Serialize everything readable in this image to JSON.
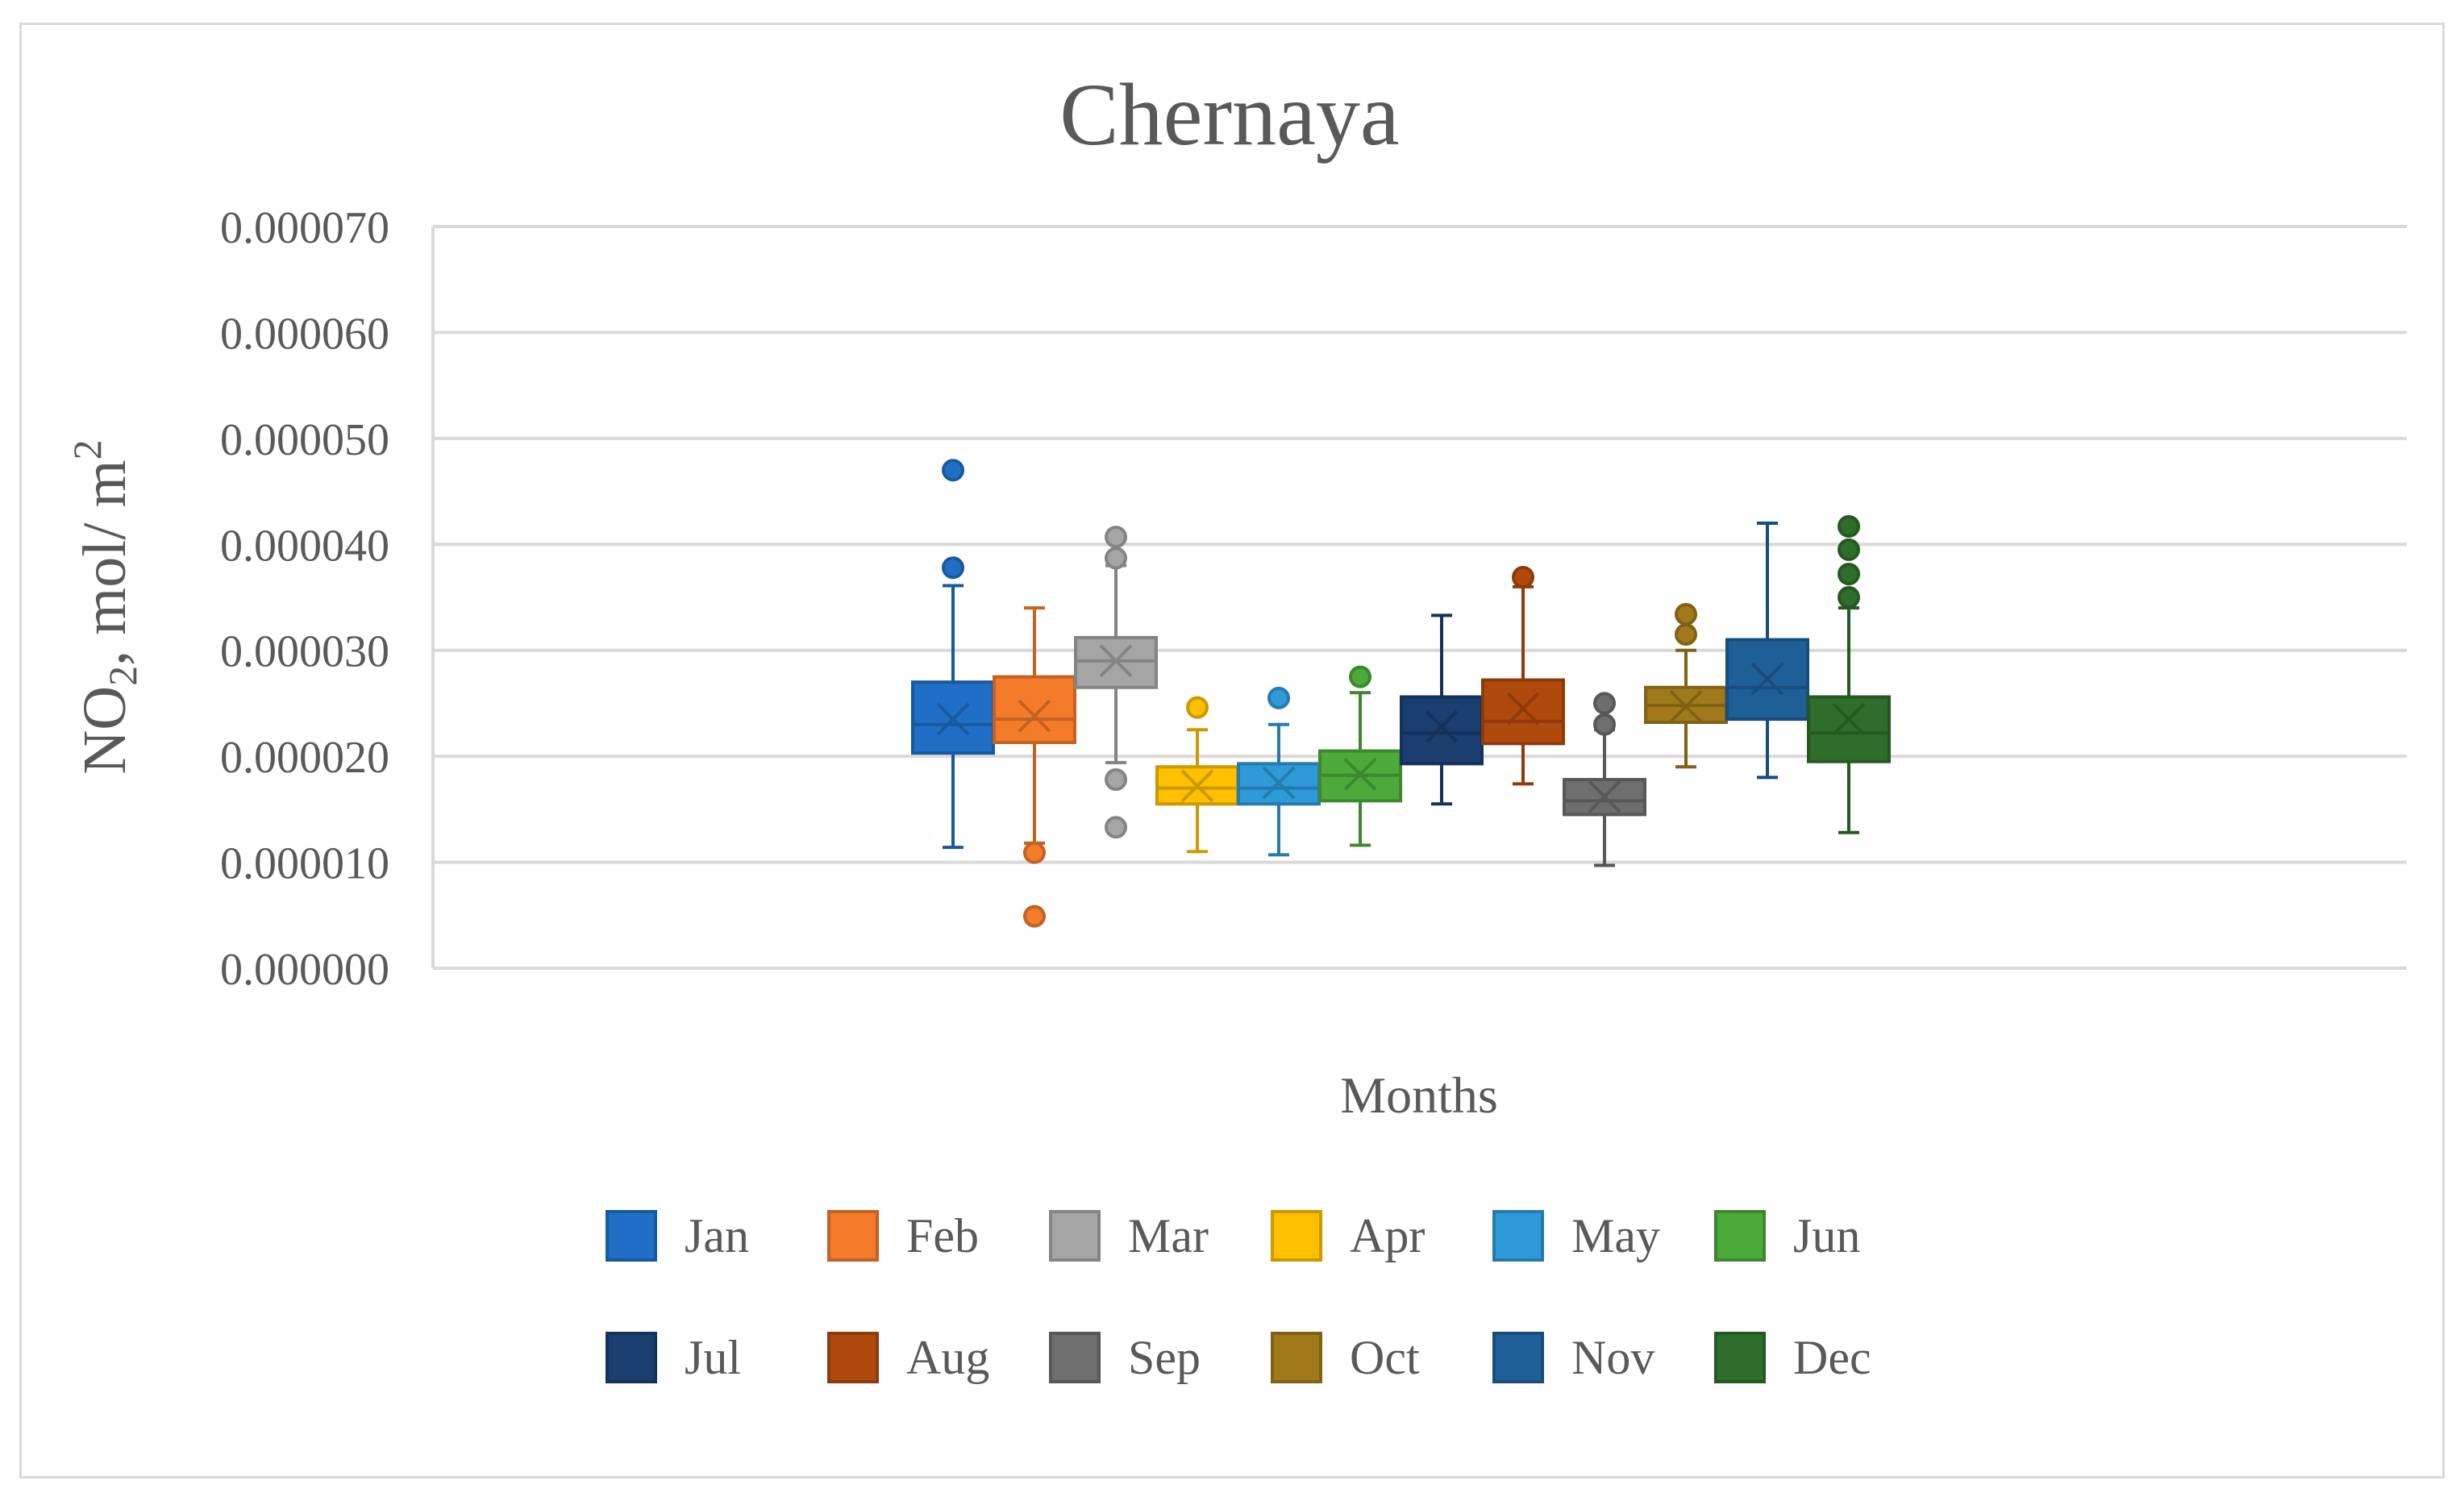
{
  "chart_data": {
    "type": "boxplot",
    "title": "Chernaya",
    "xlabel": "Months",
    "ylabel": {
      "prefix": "NO",
      "sub": "2",
      "mid": ", mol/ m",
      "sup": "2"
    },
    "ylim": [
      0,
      7e-05
    ],
    "yticks": [
      0,
      1e-05,
      2e-05,
      3e-05,
      4e-05,
      5e-05,
      6e-05,
      7e-05
    ],
    "ytick_labels": [
      "0.000000",
      "0.000010",
      "0.000020",
      "0.000030",
      "0.000040",
      "0.000050",
      "0.000060",
      "0.000070"
    ],
    "grid": true,
    "legend_position": "bottom",
    "series": [
      {
        "name": "Jan",
        "color": "#1F6FC6",
        "min": 1.14e-05,
        "q1": 2.03e-05,
        "median": 2.3e-05,
        "q3": 2.7e-05,
        "max": 3.61e-05,
        "mean": 2.35e-05,
        "outliers": [
          3.78e-05,
          4.7e-05
        ]
      },
      {
        "name": "Feb",
        "color": "#F47B2A",
        "min": 1.18e-05,
        "q1": 2.13e-05,
        "median": 2.35e-05,
        "q3": 2.75e-05,
        "max": 3.4e-05,
        "mean": 2.38e-05,
        "outliers": [
          1.09e-05,
          4.9e-06
        ]
      },
      {
        "name": "Mar",
        "color": "#A5A5A5",
        "min": 1.94e-05,
        "q1": 2.65e-05,
        "median": 2.9e-05,
        "q3": 3.12e-05,
        "max": 3.8e-05,
        "mean": 2.9e-05,
        "outliers": [
          4.07e-05,
          3.87e-05,
          1.78e-05,
          1.33e-05
        ]
      },
      {
        "name": "Apr",
        "color": "#FFC000",
        "min": 1.1e-05,
        "q1": 1.55e-05,
        "median": 1.7e-05,
        "q3": 1.9e-05,
        "max": 2.25e-05,
        "mean": 1.72e-05,
        "outliers": [
          2.46e-05
        ]
      },
      {
        "name": "May",
        "color": "#2E9AD8",
        "min": 1.07e-05,
        "q1": 1.55e-05,
        "median": 1.7e-05,
        "q3": 1.93e-05,
        "max": 2.3e-05,
        "mean": 1.75e-05,
        "outliers": [
          2.55e-05
        ]
      },
      {
        "name": "Jun",
        "color": "#4CAA3A",
        "min": 1.16e-05,
        "q1": 1.58e-05,
        "median": 1.82e-05,
        "q3": 2.05e-05,
        "max": 2.6e-05,
        "mean": 1.83e-05,
        "outliers": [
          2.75e-05
        ]
      },
      {
        "name": "Jul",
        "color": "#1A3E70",
        "min": 1.55e-05,
        "q1": 1.93e-05,
        "median": 2.22e-05,
        "q3": 2.56e-05,
        "max": 3.33e-05,
        "mean": 2.28e-05,
        "outliers": []
      },
      {
        "name": "Aug",
        "color": "#B04A0C",
        "min": 1.74e-05,
        "q1": 2.12e-05,
        "median": 2.33e-05,
        "q3": 2.72e-05,
        "max": 3.6e-05,
        "mean": 2.45e-05,
        "outliers": [
          3.69e-05
        ]
      },
      {
        "name": "Sep",
        "color": "#6E6E6E",
        "min": 9.7e-06,
        "q1": 1.45e-05,
        "median": 1.58e-05,
        "q3": 1.78e-05,
        "max": 2.25e-05,
        "mean": 1.62e-05,
        "outliers": [
          2.5e-05,
          2.3e-05
        ]
      },
      {
        "name": "Oct",
        "color": "#A07A1A",
        "min": 1.9e-05,
        "q1": 2.32e-05,
        "median": 2.48e-05,
        "q3": 2.65e-05,
        "max": 3e-05,
        "mean": 2.47e-05,
        "outliers": [
          3.34e-05,
          3.15e-05
        ]
      },
      {
        "name": "Nov",
        "color": "#1E5F98",
        "min": 1.8e-05,
        "q1": 2.35e-05,
        "median": 2.65e-05,
        "q3": 3.1e-05,
        "max": 4.2e-05,
        "mean": 2.73e-05,
        "outliers": []
      },
      {
        "name": "Dec",
        "color": "#2F6E2A",
        "min": 1.28e-05,
        "q1": 1.95e-05,
        "median": 2.22e-05,
        "q3": 2.56e-05,
        "max": 3.4e-05,
        "mean": 2.35e-05,
        "outliers": [
          4.17e-05,
          3.95e-05,
          3.72e-05,
          3.5e-05
        ]
      }
    ]
  }
}
